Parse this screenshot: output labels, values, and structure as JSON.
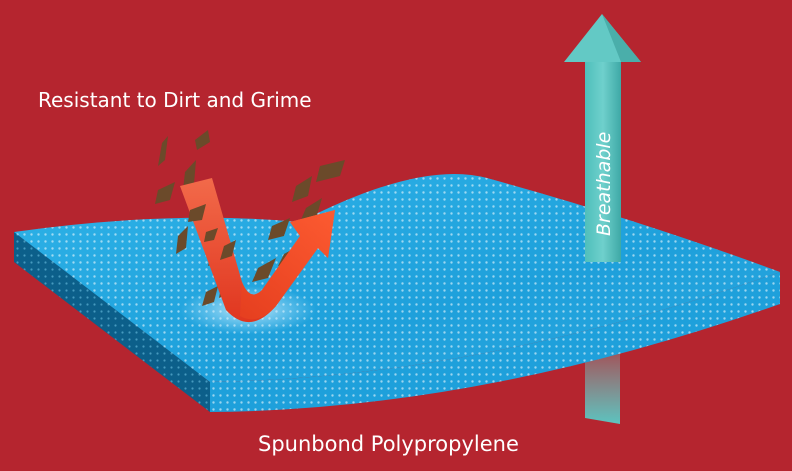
{
  "labels": {
    "top": "Resistant to Dirt and Grime",
    "arrow": "Breathable",
    "bottom": "Spunbond Polypropylene"
  },
  "colors": {
    "background": "#b5252f",
    "fabric_top": "#29a9e0",
    "fabric_side": "#0e6f9e",
    "breathable_arrow": "#5fc6c2",
    "dirt_arrow": "#ef4428",
    "dirt_particles": "#6b4a2a"
  }
}
